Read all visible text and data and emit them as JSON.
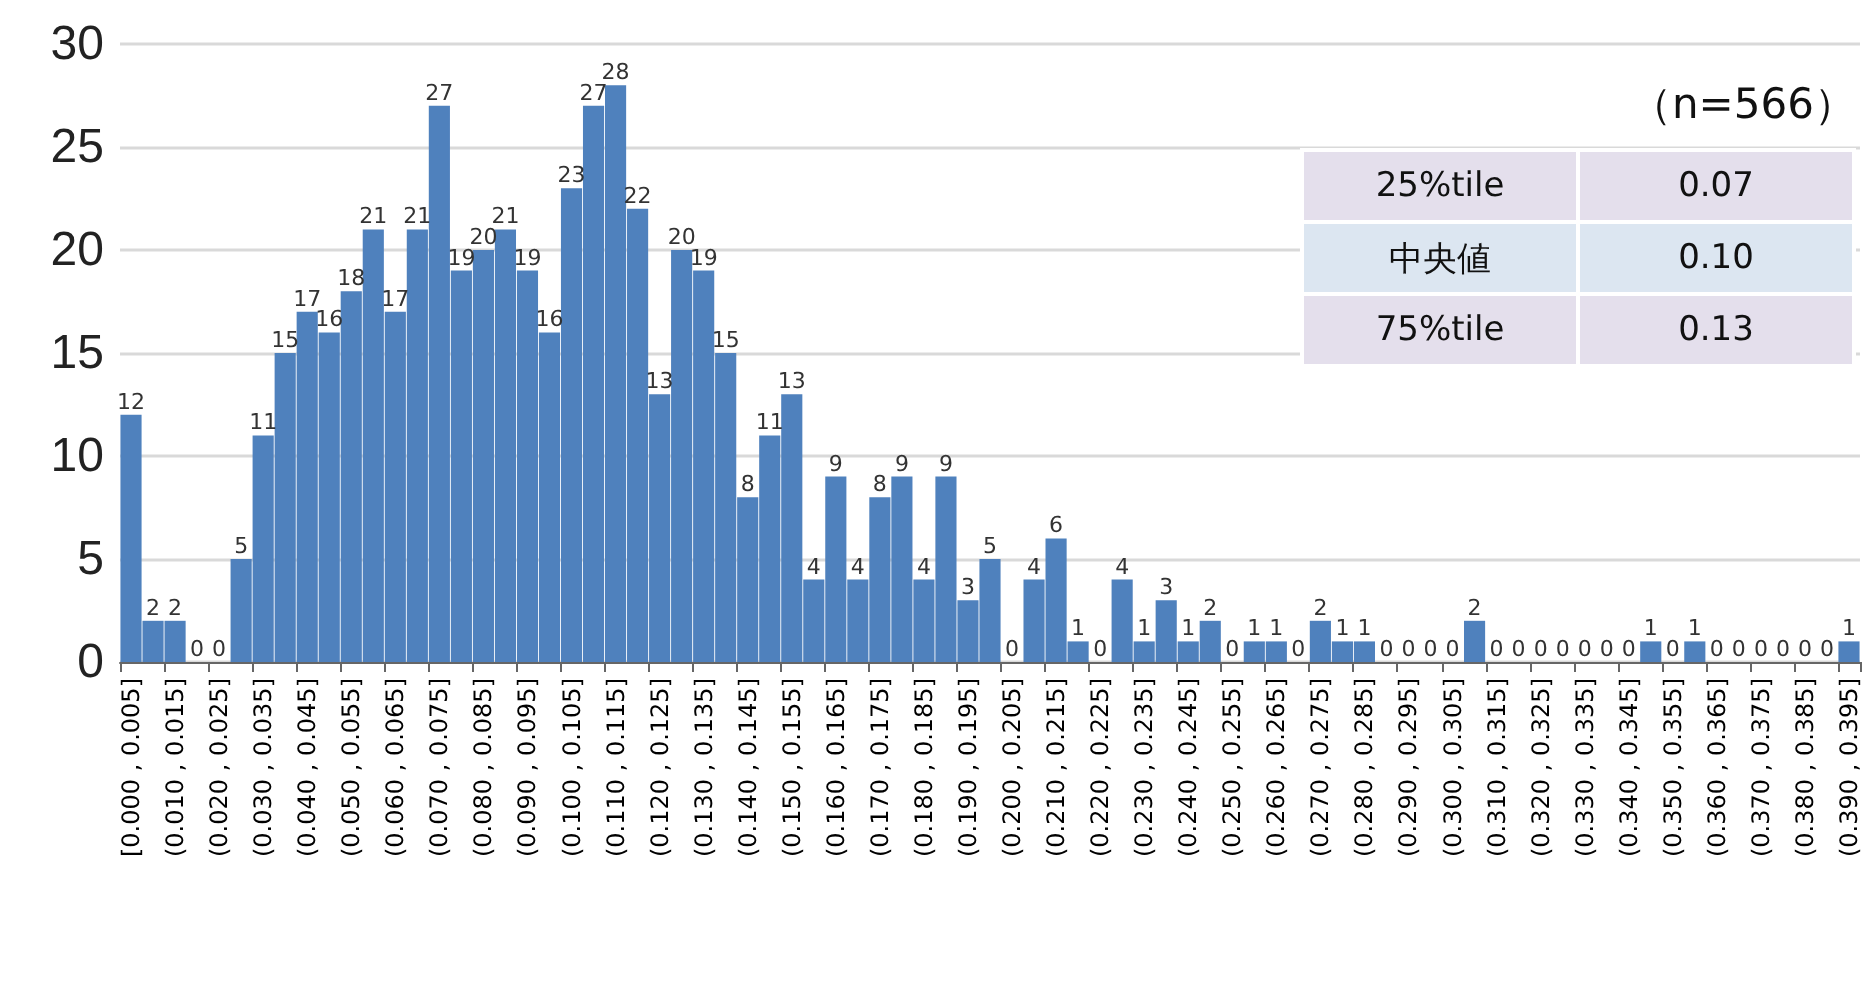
{
  "chart_data": {
    "type": "bar",
    "categories": [
      "[0.000 , 0.005]",
      null,
      "(0.010 , 0.015]",
      null,
      "(0.020 , 0.025]",
      null,
      "(0.030 , 0.035]",
      null,
      "(0.040 , 0.045]",
      null,
      "(0.050 , 0.055]",
      null,
      "(0.060 , 0.065]",
      null,
      "(0.070 , 0.075]",
      null,
      "(0.080 , 0.085]",
      null,
      "(0.090 , 0.095]",
      null,
      "(0.100 , 0.105]",
      null,
      "(0.110 , 0.115]",
      null,
      "(0.120 , 0.125]",
      null,
      "(0.130 , 0.135]",
      null,
      "(0.140 , 0.145]",
      null,
      "(0.150 , 0.155]",
      null,
      "(0.160 , 0.165]",
      null,
      "(0.170 , 0.175]",
      null,
      "(0.180 , 0.185]",
      null,
      "(0.190 , 0.195]",
      null,
      "(0.200 , 0.205]",
      null,
      "(0.210 , 0.215]",
      null,
      "(0.220 , 0.225]",
      null,
      "(0.230 , 0.235]",
      null,
      "(0.240 , 0.245]",
      null,
      "(0.250 , 0.255]",
      null,
      "(0.260 , 0.265]",
      null,
      "(0.270 , 0.275]",
      null,
      "(0.280 , 0.285]",
      null,
      "(0.290 , 0.295]",
      null,
      "(0.300 , 0.305]",
      null,
      "(0.310 , 0.315]",
      null,
      "(0.320 , 0.325]",
      null,
      "(0.330 , 0.335]",
      null,
      "(0.340 , 0.345]",
      null,
      "(0.350 , 0.355]",
      null,
      "(0.360 , 0.365]",
      null,
      "(0.370 , 0.375]",
      null,
      "(0.380 , 0.385]",
      null,
      "(0.390 , 0.395]"
    ],
    "values": [
      12,
      2,
      2,
      0,
      0,
      5,
      11,
      15,
      17,
      16,
      18,
      21,
      17,
      21,
      27,
      19,
      20,
      21,
      19,
      16,
      23,
      27,
      28,
      22,
      13,
      20,
      19,
      15,
      8,
      11,
      13,
      4,
      9,
      4,
      8,
      9,
      4,
      9,
      3,
      5,
      0,
      4,
      6,
      1,
      0,
      4,
      1,
      3,
      1,
      2,
      0,
      1,
      1,
      0,
      2,
      1,
      1,
      0,
      0,
      0,
      0,
      2,
      0,
      0,
      0,
      0,
      0,
      0,
      0,
      1,
      0,
      1,
      0,
      0,
      0,
      0,
      0,
      0,
      1
    ],
    "color": "#4f81bd",
    "ylim": [
      0,
      30
    ],
    "yticks": [
      0,
      5,
      10,
      15,
      20,
      25,
      30
    ],
    "grid": "y",
    "data_labels": true,
    "annotations": [
      "（n=566）",
      "25%tile",
      "0.07",
      "中央値",
      "0.10",
      "75%tile",
      "0.13"
    ]
  }
}
